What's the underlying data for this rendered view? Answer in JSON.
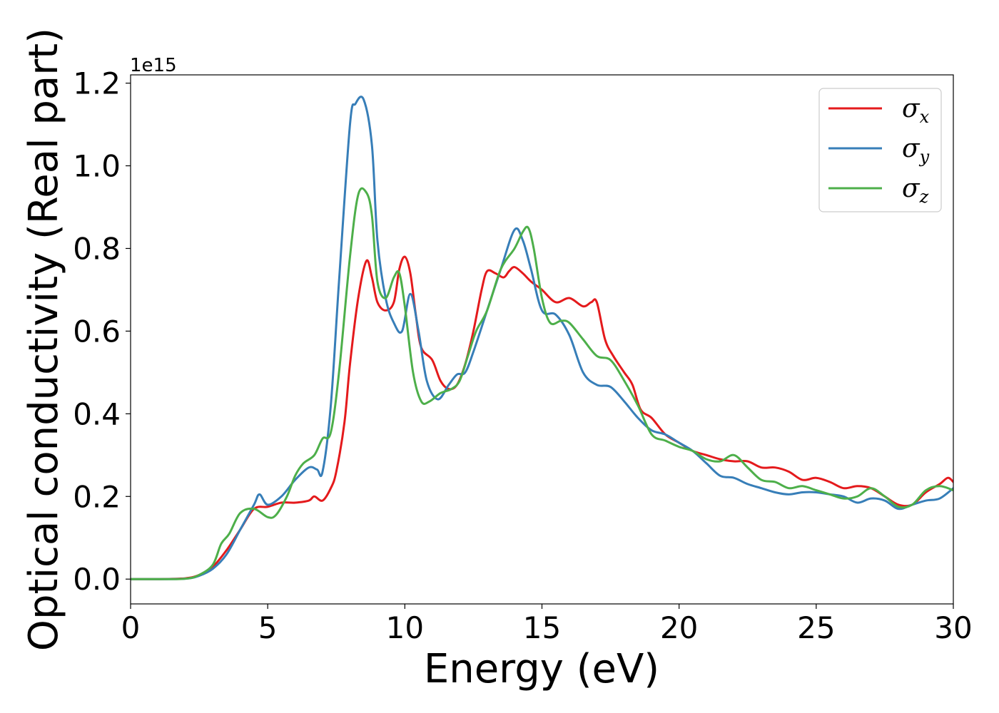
{
  "chart_data": {
    "type": "line",
    "title": "",
    "xlabel": "Energy (eV)",
    "ylabel": "Optical conductivity (Real part)",
    "y_offset_label": "1e15",
    "xlim": [
      0,
      30
    ],
    "ylim": [
      -0.06,
      1.22
    ],
    "xticks": [
      0,
      5,
      10,
      15,
      20,
      25,
      30
    ],
    "xtick_labels": [
      "0",
      "5",
      "10",
      "15",
      "20",
      "25",
      "30"
    ],
    "yticks": [
      0.0,
      0.2,
      0.4,
      0.6,
      0.8,
      1.0,
      1.2
    ],
    "ytick_labels": [
      "0.0",
      "0.2",
      "0.4",
      "0.6",
      "0.8",
      "1.0",
      "1.2"
    ],
    "grid": false,
    "legend_position": "top-right",
    "series": [
      {
        "name": "σx",
        "legend_base": "σ",
        "legend_sub": "x",
        "color": "#e41a1c",
        "x": [
          0,
          1,
          2,
          2.5,
          3,
          3.5,
          4,
          4.5,
          5,
          5.5,
          6,
          6.5,
          6.7,
          7,
          7.3,
          7.5,
          7.8,
          8,
          8.3,
          8.6,
          8.8,
          9,
          9.3,
          9.6,
          9.8,
          10,
          10.2,
          10.4,
          10.6,
          11,
          11.3,
          11.6,
          11.9,
          12.2,
          12.5,
          12.8,
          13,
          13.3,
          13.6,
          13.8,
          14,
          14.3,
          14.6,
          15,
          15.5,
          16,
          16.5,
          16.8,
          17,
          17.3,
          17.6,
          18,
          18.3,
          18.6,
          19,
          19.5,
          20,
          20.5,
          21,
          21.5,
          22,
          22.5,
          23,
          23.5,
          24,
          24.5,
          25,
          25.5,
          26,
          26.5,
          27,
          27.5,
          28,
          28.5,
          29,
          29.5,
          29.8,
          30
        ],
        "y": [
          0,
          0,
          0.002,
          0.01,
          0.03,
          0.07,
          0.12,
          0.17,
          0.175,
          0.185,
          0.185,
          0.19,
          0.2,
          0.19,
          0.22,
          0.26,
          0.38,
          0.52,
          0.68,
          0.77,
          0.73,
          0.67,
          0.65,
          0.67,
          0.75,
          0.78,
          0.74,
          0.64,
          0.56,
          0.53,
          0.48,
          0.46,
          0.47,
          0.52,
          0.6,
          0.7,
          0.745,
          0.74,
          0.73,
          0.745,
          0.755,
          0.74,
          0.72,
          0.7,
          0.67,
          0.68,
          0.66,
          0.67,
          0.67,
          0.58,
          0.54,
          0.5,
          0.47,
          0.41,
          0.39,
          0.35,
          0.33,
          0.31,
          0.3,
          0.29,
          0.285,
          0.285,
          0.27,
          0.27,
          0.26,
          0.24,
          0.245,
          0.235,
          0.22,
          0.225,
          0.22,
          0.2,
          0.18,
          0.18,
          0.21,
          0.23,
          0.245,
          0.235
        ]
      },
      {
        "name": "σy",
        "legend_base": "σ",
        "legend_sub": "y",
        "color": "#377eb8",
        "x": [
          0,
          1,
          2,
          2.5,
          3,
          3.5,
          4,
          4.5,
          4.7,
          5,
          5.5,
          6,
          6.5,
          6.8,
          7,
          7.3,
          7.6,
          8,
          8.2,
          8.5,
          8.8,
          9,
          9.3,
          9.6,
          9.9,
          10.2,
          10.5,
          10.8,
          11.2,
          11.6,
          11.9,
          12.2,
          12.5,
          13,
          13.5,
          14,
          14.3,
          14.6,
          15,
          15.5,
          16,
          16.5,
          17,
          17.5,
          18,
          18.5,
          19,
          19.5,
          20,
          20.5,
          21,
          21.5,
          22,
          22.5,
          23,
          23.5,
          24,
          24.5,
          25,
          25.5,
          26,
          26.5,
          27,
          27.5,
          28,
          28.5,
          29,
          29.5,
          30
        ],
        "y": [
          0,
          0,
          0.001,
          0.008,
          0.025,
          0.06,
          0.12,
          0.18,
          0.205,
          0.18,
          0.2,
          0.24,
          0.27,
          0.265,
          0.26,
          0.42,
          0.72,
          1.1,
          1.15,
          1.16,
          1.05,
          0.82,
          0.68,
          0.62,
          0.6,
          0.69,
          0.6,
          0.48,
          0.435,
          0.47,
          0.495,
          0.5,
          0.55,
          0.65,
          0.75,
          0.845,
          0.82,
          0.75,
          0.65,
          0.64,
          0.59,
          0.5,
          0.47,
          0.465,
          0.43,
          0.39,
          0.36,
          0.35,
          0.33,
          0.31,
          0.28,
          0.25,
          0.245,
          0.23,
          0.22,
          0.21,
          0.205,
          0.21,
          0.21,
          0.205,
          0.2,
          0.185,
          0.195,
          0.19,
          0.17,
          0.18,
          0.19,
          0.195,
          0.22
        ]
      },
      {
        "name": "σz",
        "legend_base": "σ",
        "legend_sub": "z",
        "color": "#4daf4a",
        "x": [
          0,
          1,
          2,
          2.5,
          3,
          3.3,
          3.6,
          4,
          4.5,
          5,
          5.3,
          5.7,
          6,
          6.3,
          6.7,
          7,
          7.3,
          7.6,
          8,
          8.3,
          8.6,
          8.8,
          9,
          9.3,
          9.6,
          9.8,
          10,
          10.3,
          10.6,
          10.9,
          11.3,
          11.7,
          12,
          12.3,
          12.6,
          13,
          13.5,
          14,
          14.3,
          14.5,
          14.7,
          15,
          15.3,
          15.7,
          16,
          16.5,
          17,
          17.5,
          18,
          18.5,
          19,
          19.5,
          20,
          20.5,
          21,
          21.5,
          22,
          22.5,
          23,
          23.5,
          24,
          24.5,
          25,
          25.5,
          26,
          26.5,
          27,
          27.5,
          28,
          28.5,
          29,
          29.5,
          30
        ],
        "y": [
          0,
          0,
          0.001,
          0.01,
          0.035,
          0.085,
          0.11,
          0.16,
          0.17,
          0.15,
          0.155,
          0.2,
          0.25,
          0.28,
          0.3,
          0.34,
          0.355,
          0.5,
          0.78,
          0.93,
          0.935,
          0.88,
          0.72,
          0.68,
          0.73,
          0.74,
          0.66,
          0.5,
          0.43,
          0.43,
          0.45,
          0.46,
          0.48,
          0.54,
          0.6,
          0.65,
          0.75,
          0.8,
          0.84,
          0.85,
          0.8,
          0.68,
          0.62,
          0.625,
          0.62,
          0.58,
          0.54,
          0.53,
          0.48,
          0.42,
          0.35,
          0.335,
          0.32,
          0.31,
          0.29,
          0.285,
          0.3,
          0.27,
          0.24,
          0.235,
          0.22,
          0.225,
          0.215,
          0.205,
          0.195,
          0.2,
          0.22,
          0.2,
          0.175,
          0.18,
          0.215,
          0.225,
          0.215
        ]
      }
    ]
  }
}
